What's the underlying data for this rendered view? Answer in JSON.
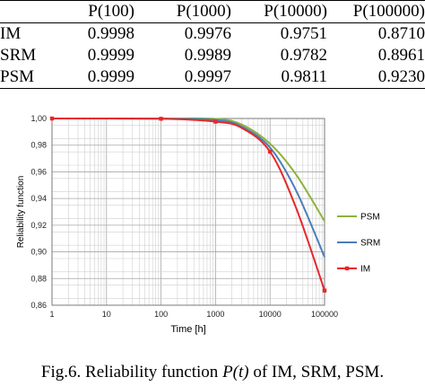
{
  "table": {
    "columns": [
      "",
      "P(100)",
      "P(1000)",
      "P(10000)",
      "P(100000)"
    ],
    "rows": [
      {
        "label": "IM",
        "values": [
          "0.9998",
          "0.9976",
          "0.9751",
          "0.8710"
        ]
      },
      {
        "label": "SRM",
        "values": [
          "0.9999",
          "0.9989",
          "0.9782",
          "0.8961"
        ]
      },
      {
        "label": "PSM",
        "values": [
          "0.9999",
          "0.9997",
          "0.9811",
          "0.9230"
        ]
      }
    ]
  },
  "chart_data": {
    "type": "line",
    "title": "",
    "xlabel": "Time [h]",
    "ylabel": "Reliability function",
    "x_scale": "log",
    "xlim": [
      1,
      100000
    ],
    "ylim": [
      0.86,
      1.0
    ],
    "x_ticks": [
      "1",
      "10",
      "100",
      "1000",
      "10000",
      "100000"
    ],
    "y_ticks": [
      "0,86",
      "0,88",
      "0,90",
      "0,92",
      "0,94",
      "0,96",
      "0,98",
      "1,00"
    ],
    "grid": true,
    "legend_position": "right",
    "series": [
      {
        "name": "PSM",
        "color": "#8db33a",
        "marker": "none",
        "x": [
          1,
          100,
          1000,
          3000,
          10000,
          30000,
          100000
        ],
        "y": [
          1.0,
          0.9999,
          0.9997,
          0.9955,
          0.9811,
          0.958,
          0.923
        ]
      },
      {
        "name": "SRM",
        "color": "#4a7ebb",
        "marker": "none",
        "x": [
          1,
          100,
          1000,
          3000,
          10000,
          30000,
          100000
        ],
        "y": [
          1.0,
          0.9999,
          0.9989,
          0.994,
          0.9782,
          0.946,
          0.8961
        ]
      },
      {
        "name": "IM",
        "color": "#e8272a",
        "marker": "square",
        "x": [
          1,
          100,
          1000,
          3000,
          10000,
          30000,
          100000
        ],
        "y": [
          1.0,
          0.9998,
          0.9976,
          0.993,
          0.9751,
          0.933,
          0.871
        ],
        "marker_x": [
          1,
          100,
          1000,
          10000,
          100000
        ],
        "marker_y": [
          1.0,
          0.9998,
          0.9976,
          0.9751,
          0.871
        ]
      }
    ]
  },
  "caption": {
    "prefix": "Fig.6. Reliability function ",
    "func": "P(t)",
    "suffix": " of IM, SRM, PSM."
  }
}
